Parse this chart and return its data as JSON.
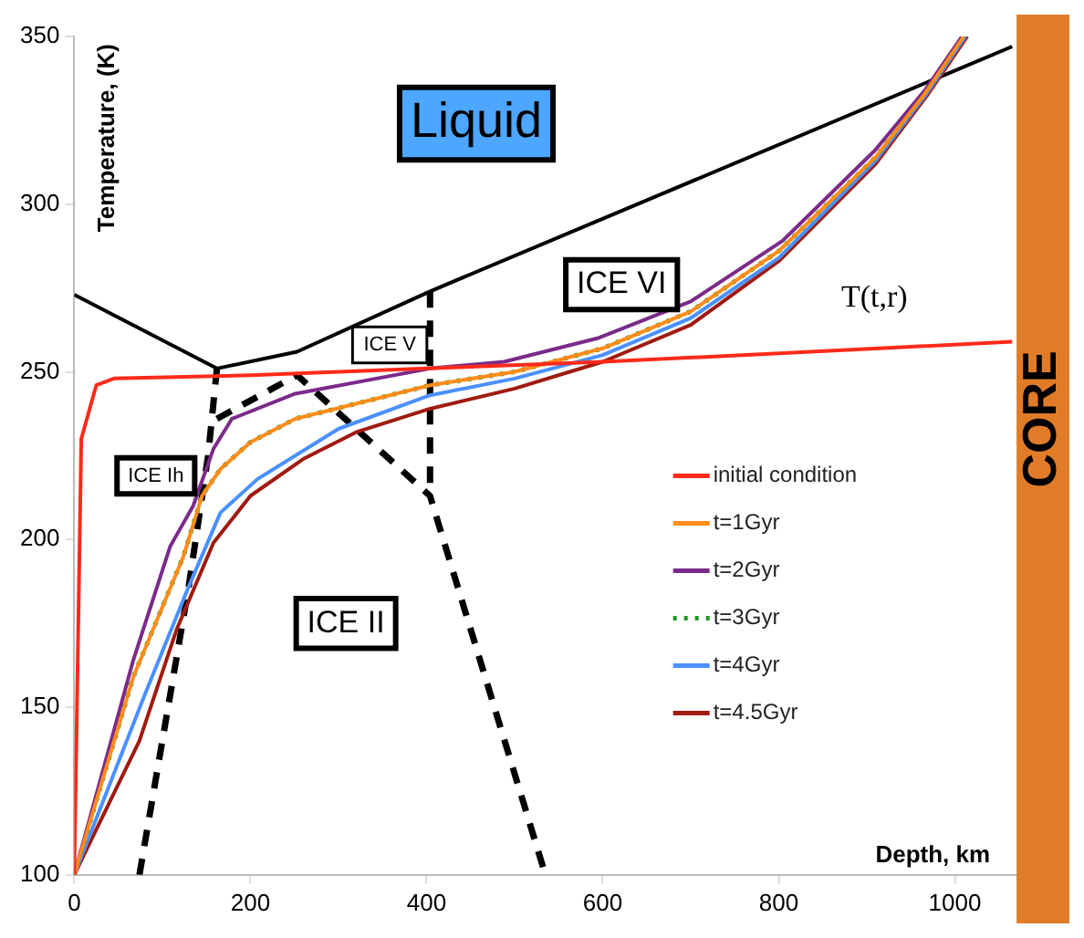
{
  "chart_data": {
    "type": "line",
    "xlabel": "Depth, km",
    "ylabel": "Temperature, (K)",
    "xlim": [
      0,
      1130
    ],
    "ylim": [
      100,
      350
    ],
    "xticks": [
      0,
      200,
      400,
      600,
      800,
      1000
    ],
    "yticks": [
      100,
      150,
      200,
      250,
      300,
      350
    ],
    "grid": false,
    "legend": "right",
    "marker": "none",
    "series": [
      {
        "name": "initial condition",
        "color": "#ff2a1a",
        "line_style": "solid",
        "x": [
          0,
          8,
          25,
          45,
          200,
          400,
          600,
          800,
          1065
        ],
        "values": [
          100,
          230,
          246,
          248,
          249,
          251,
          253,
          255.5,
          259
        ]
      },
      {
        "name": "t=1Gyr",
        "color": "#ff8c1a",
        "line_style": "solid",
        "x": [
          0,
          67,
          124,
          145,
          166,
          200,
          251,
          404,
          500,
          600,
          700,
          800,
          910,
          966,
          1010
        ],
        "values": [
          100,
          159,
          195,
          213,
          221,
          229,
          236,
          246,
          250,
          257,
          268,
          286,
          314,
          333,
          350
        ]
      },
      {
        "name": "t=2Gyr",
        "color": "#7b2a8a",
        "line_style": "solid",
        "x": [
          0,
          67,
          109,
          135,
          158,
          179,
          251,
          404,
          488,
          594,
          700,
          804,
          909,
          966,
          1008
        ],
        "values": [
          100,
          164,
          198,
          210,
          227,
          236,
          243.5,
          251,
          253,
          260,
          271,
          289,
          316,
          334,
          350
        ]
      },
      {
        "name": "t=3Gyr",
        "color": "#1a9a1a",
        "line_style": "dotted",
        "x": [
          0,
          67,
          124,
          145,
          166,
          200,
          251,
          404,
          500,
          600,
          700,
          800,
          910,
          966,
          1010
        ],
        "values": [
          100,
          159,
          195,
          213,
          221,
          229,
          236,
          246,
          250,
          257,
          268,
          286,
          314,
          333,
          350
        ]
      },
      {
        "name": "t=4Gyr",
        "color": "#4a90ff",
        "line_style": "solid",
        "x": [
          0,
          82,
          130,
          166,
          208,
          300,
          404,
          500,
          600,
          700,
          800,
          910,
          968,
          1012
        ],
        "values": [
          100,
          155,
          186,
          208,
          218,
          233,
          243,
          248,
          255,
          266,
          284,
          313,
          333,
          350
        ]
      },
      {
        "name": "t=4.5Gyr",
        "color": "#a01a10",
        "line_style": "solid",
        "x": [
          0,
          74,
          116,
          158,
          200,
          260,
          320,
          404,
          500,
          600,
          700,
          800,
          910,
          970,
          1014
        ],
        "values": [
          100,
          140,
          173,
          199,
          213,
          224,
          232,
          239,
          245,
          253,
          264,
          283,
          312,
          333,
          350
        ]
      },
      {
        "color": "#000000",
        "line_style": "solid",
        "x": [
          0,
          162,
          253,
          404,
          1065
        ],
        "values": [
          273,
          251,
          256,
          274,
          347
        ]
      },
      {
        "color": "#000000",
        "line_style": "dashed",
        "x": [
          74,
          130,
          152,
          162
        ],
        "values": [
          100,
          186,
          225,
          251
        ]
      },
      {
        "color": "#000000",
        "line_style": "dashed",
        "x": [
          162,
          253,
          404,
          535
        ],
        "values": [
          236,
          249,
          213,
          100
        ]
      },
      {
        "color": "#000000",
        "line_style": "dashed",
        "x": [
          404,
          404
        ],
        "values": [
          274,
          213
        ]
      }
    ],
    "bands": [
      {
        "axis": "x",
        "from": 1070,
        "to": 1130,
        "label": "CORE",
        "color": "#e07b28"
      }
    ],
    "annotations": [
      "Liquid",
      "ICE VI",
      "T(t,r)",
      "ICE V",
      "ICE Ih",
      "ICE II"
    ]
  }
}
